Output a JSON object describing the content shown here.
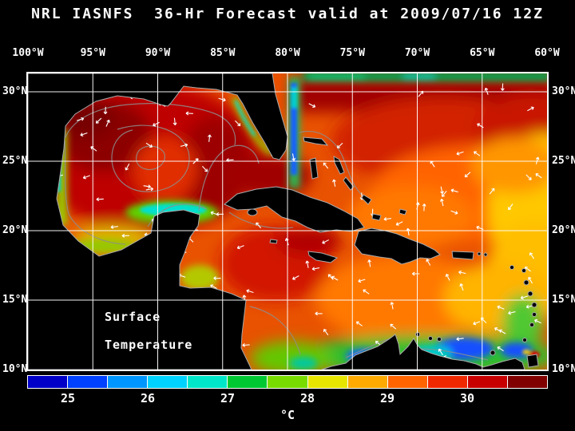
{
  "title": "NRL IASNFS  36-Hr Forecast valid at 2009/07/16 12Z",
  "map": {
    "lon_labels": [
      "100°W",
      "95°W",
      "90°W",
      "85°W",
      "80°W",
      "75°W",
      "70°W",
      "65°W",
      "60°W"
    ],
    "lat_labels": [
      "30°N",
      "25°N",
      "20°N",
      "15°N",
      "10°N"
    ],
    "annotation": {
      "line1": "Surface",
      "line2": "Temperature"
    }
  },
  "colorbar": {
    "unit": "°C",
    "tick_labels": [
      "25",
      "26",
      "27",
      "28",
      "29",
      "30"
    ],
    "segment_colors": [
      "#0000c8",
      "#0040ff",
      "#0096ff",
      "#00d2ff",
      "#00e6c8",
      "#00c832",
      "#78dc00",
      "#e6e600",
      "#ffaa00",
      "#ff6400",
      "#f02800",
      "#c80000",
      "#800000"
    ]
  },
  "palette": {
    "background": "#000000",
    "grid": "#ffffff",
    "text": "#ffffff",
    "land": "#000000",
    "coastline": "#aaaaaa",
    "contour": "#8f8f8f"
  }
}
